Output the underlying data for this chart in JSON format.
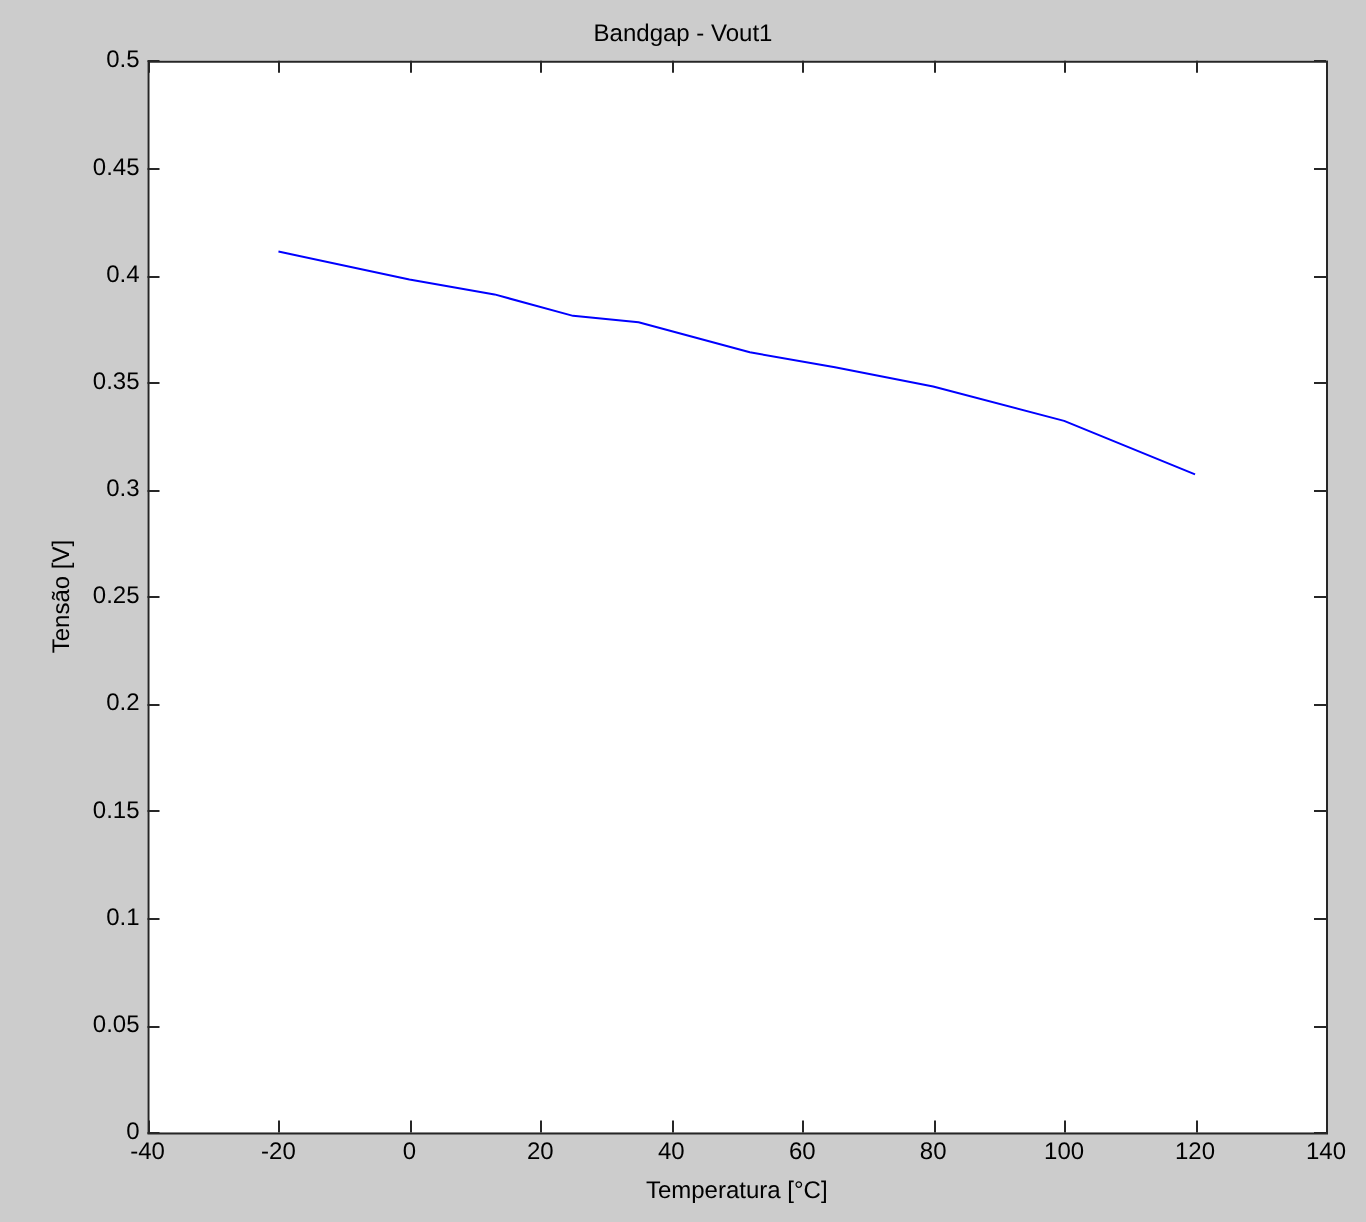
{
  "chart_data": {
    "type": "line",
    "title": "Bandgap - Vout1",
    "xlabel": "Temperatura [°C]",
    "ylabel": "Tensão [V]",
    "x": [
      -20,
      0,
      13,
      25,
      35,
      52,
      65,
      80,
      100,
      120
    ],
    "series": [
      {
        "color": "#0000ff",
        "values": [
          0.411,
          0.398,
          0.391,
          0.381,
          0.378,
          0.364,
          0.357,
          0.348,
          0.332,
          0.307
        ]
      }
    ],
    "xlim": [
      -40,
      140
    ],
    "xticks": [
      -40,
      -20,
      0,
      20,
      40,
      60,
      80,
      100,
      120,
      140
    ],
    "ylim": [
      0,
      0.5
    ],
    "yticks": [
      0,
      0.05,
      0.1,
      0.15,
      0.2,
      0.25,
      0.3,
      0.35,
      0.4,
      0.45,
      0.5
    ],
    "grid": false,
    "legend": false,
    "marker": "none",
    "line_style": "solid"
  }
}
